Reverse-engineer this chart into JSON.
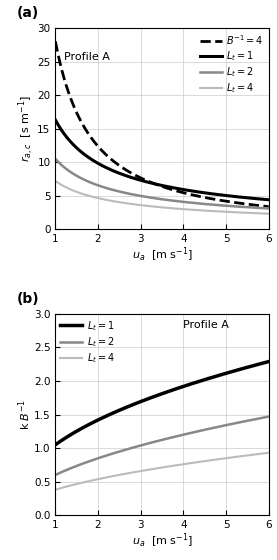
{
  "title_a": "(a)",
  "title_b": "(b)",
  "xlabel_a": "$u_a$  [m s$^{-1}$]",
  "xlabel_b": "$u_a$  [m s$^{-1}$]",
  "ylabel_a": "$r_{a,c}$  [s m$^{-1}$]",
  "ylabel_b": "k $B^{-1}$",
  "xlim": [
    1,
    6
  ],
  "ylim_a": [
    0,
    30
  ],
  "ylim_b": [
    0,
    3.0
  ],
  "yticks_a": [
    0,
    5,
    10,
    15,
    20,
    25,
    30
  ],
  "yticks_b": [
    0.0,
    0.5,
    1.0,
    1.5,
    2.0,
    2.5,
    3.0
  ],
  "xticks": [
    1,
    2,
    3,
    4,
    5,
    6
  ],
  "LAI_values": [
    1,
    2,
    4
  ],
  "colors_a": [
    "#000000",
    "#888888",
    "#bbbbbb"
  ],
  "colors_b": [
    "#000000",
    "#888888",
    "#bbbbbb"
  ],
  "lw_a": [
    2.2,
    1.8,
    1.5
  ],
  "lw_b": [
    2.5,
    1.8,
    1.5
  ],
  "profile_A_text_a": "Profile A",
  "profile_A_text_b": "Profile A",
  "legend_a": [
    "$B^{-1} = 4$",
    "$L_t = 1$",
    "$L_t = 2$",
    "$L_t = 4$"
  ],
  "legend_b": [
    "$L_t = 1$",
    "$L_t = 2$",
    "$L_t = 4$"
  ],
  "bg_color": "#ffffff",
  "rac_params": {
    "1": [
      16.3,
      0.73
    ],
    "2": [
      10.5,
      0.68
    ],
    "4": [
      7.2,
      0.63
    ]
  },
  "rac_binv_params": [
    28.0,
    1.18
  ],
  "kBinv_params": {
    "1": [
      1.05,
      0.435
    ],
    "2": [
      0.6,
      0.5
    ],
    "4": [
      0.38,
      0.5
    ]
  }
}
